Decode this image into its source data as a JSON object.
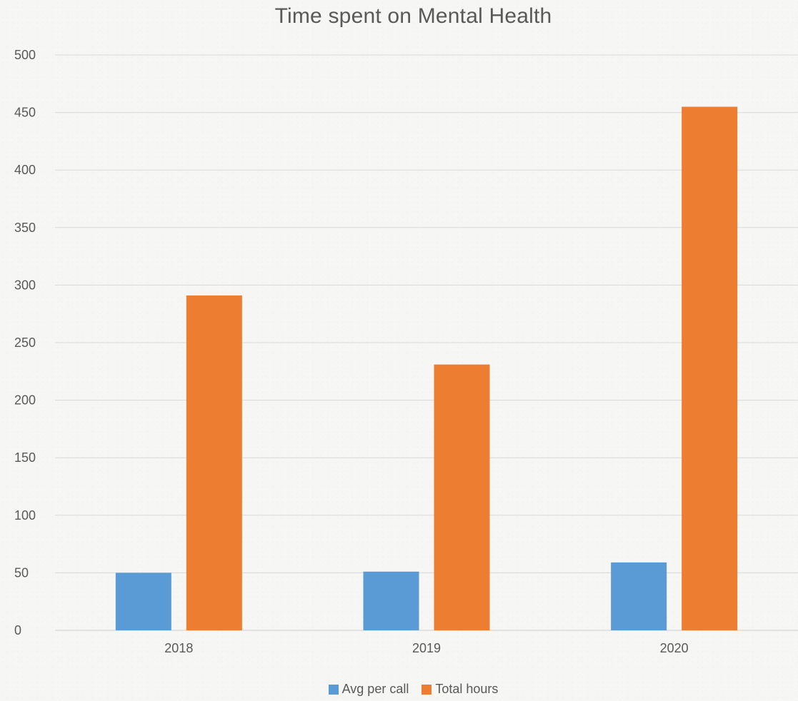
{
  "chart_data": {
    "type": "bar",
    "title": "Time spent on Mental Health",
    "xlabel": "",
    "ylabel": "",
    "categories": [
      "2018",
      "2019",
      "2020"
    ],
    "series": [
      {
        "name": "Avg per call",
        "color": "#5b9bd5",
        "values": [
          50,
          51,
          59
        ]
      },
      {
        "name": "Total hours",
        "color": "#ed7d31",
        "values": [
          291,
          231,
          455
        ]
      }
    ],
    "ylim": [
      0,
      500
    ],
    "yticks": [
      "0",
      "50",
      "100",
      "150",
      "200",
      "250",
      "300",
      "350",
      "400",
      "450",
      "500"
    ],
    "grid": true,
    "legend_position": "bottom"
  }
}
